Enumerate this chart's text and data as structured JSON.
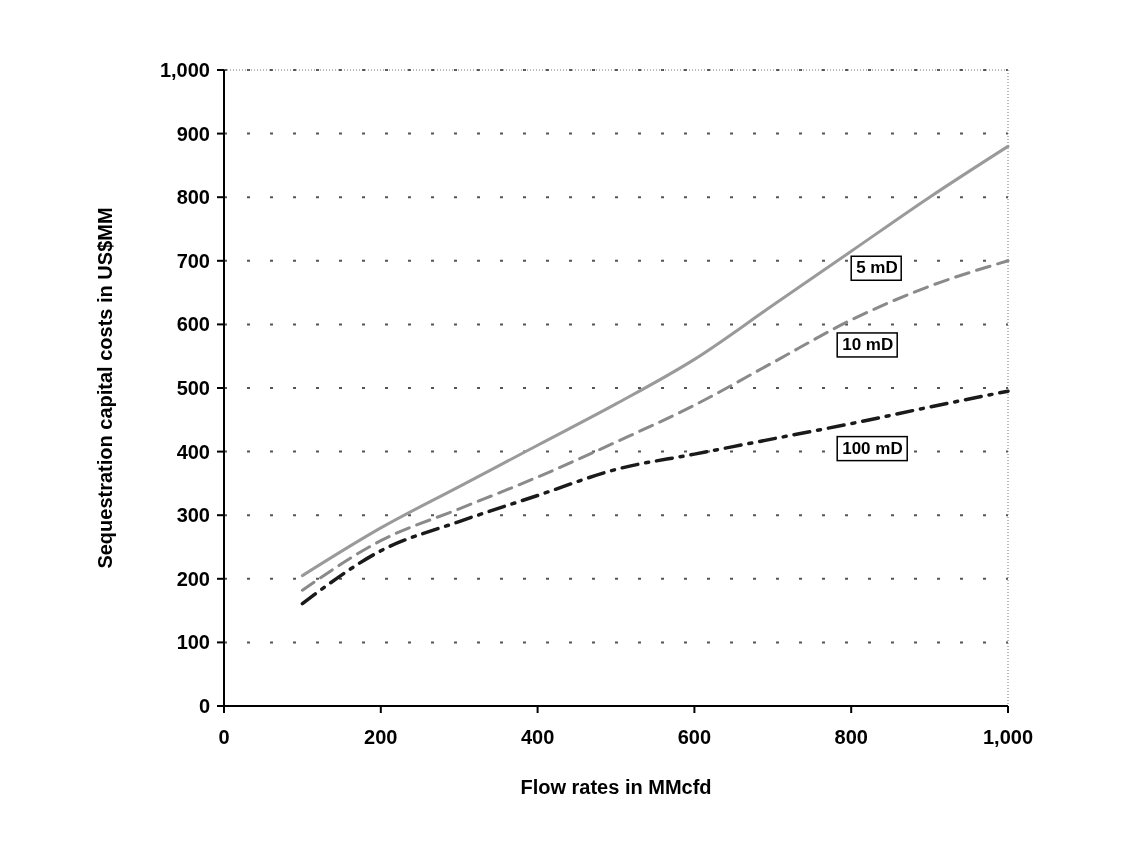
{
  "chart_data": {
    "type": "line",
    "xlabel": "Flow rates in MMcfd",
    "ylabel": "Sequestration capital costs in US$MM",
    "xlim": [
      0,
      1000
    ],
    "ylim": [
      0,
      1000
    ],
    "xticks": [
      0,
      200,
      400,
      600,
      800,
      {
        "value": 1000,
        "label": "1,000"
      }
    ],
    "yticks": [
      0,
      100,
      200,
      300,
      400,
      500,
      600,
      700,
      800,
      900,
      {
        "value": 1000,
        "label": "1,000"
      }
    ],
    "grid": "y",
    "marker": "none",
    "series": [
      {
        "name": "5 mD",
        "color": "#9a9a9a",
        "line_style": "solid",
        "x": [
          100,
          200,
          300,
          400,
          500,
          600,
          700,
          800,
          900,
          1000
        ],
        "values": [
          205,
          280,
          345,
          410,
          475,
          545,
          630,
          715,
          800,
          880
        ]
      },
      {
        "name": "10 mD",
        "color": "#8a8a8a",
        "line_style": "dashed",
        "x": [
          100,
          200,
          300,
          400,
          500,
          600,
          700,
          800,
          900,
          1000
        ],
        "values": [
          182,
          260,
          310,
          360,
          415,
          473,
          540,
          607,
          660,
          700
        ]
      },
      {
        "name": "100 mD",
        "color": "#1a1a1a",
        "line_style": "dashed",
        "x": [
          100,
          200,
          300,
          400,
          500,
          600,
          700,
          800,
          900,
          1000
        ],
        "values": [
          161,
          244,
          290,
          331,
          372,
          396,
          420,
          444,
          470,
          495
        ]
      }
    ]
  }
}
